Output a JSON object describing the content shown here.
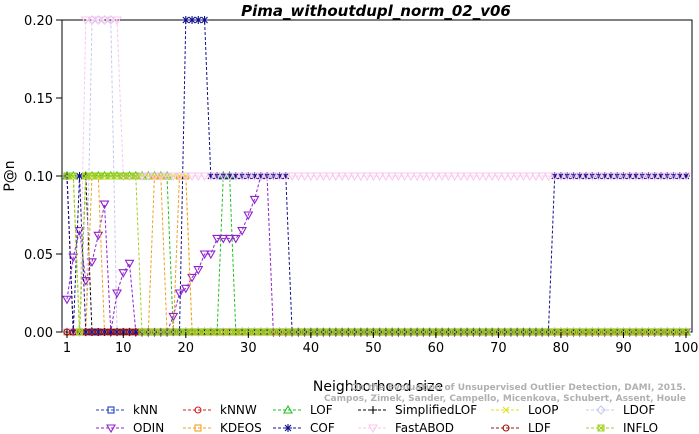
{
  "chart_data": {
    "type": "line",
    "title": "Pima_withoutdupl_norm_02_v06",
    "xlabel": "Neighborhood size",
    "ylabel": "P@n",
    "xlim": [
      1,
      100
    ],
    "ylim": [
      0,
      0.2
    ],
    "xticks": [
      1,
      10,
      20,
      30,
      40,
      50,
      60,
      70,
      80,
      90,
      100
    ],
    "yticks": [
      "0.00",
      "0.05",
      "0.10",
      "0.15",
      "0.20"
    ],
    "grid": false,
    "legend_position": "bottom",
    "series": [
      {
        "name": "kNN",
        "color": "#1f3fbf",
        "marker": "square",
        "points": [
          [
            1,
            0.1
          ],
          [
            2,
            0
          ],
          [
            100,
            0
          ]
        ]
      },
      {
        "name": "kNNW",
        "color": "#d02020",
        "marker": "circle",
        "points": [
          [
            1,
            0.1
          ],
          [
            2,
            0
          ],
          [
            100,
            0
          ]
        ]
      },
      {
        "name": "LOF",
        "color": "#20c020",
        "marker": "triangle",
        "points": [
          [
            1,
            0.1
          ],
          [
            2,
            0.1
          ],
          [
            3,
            0
          ],
          [
            4,
            0.1
          ],
          [
            5,
            0.1
          ],
          [
            6,
            0.1
          ],
          [
            7,
            0.1
          ],
          [
            8,
            0.1
          ],
          [
            9,
            0.1
          ],
          [
            10,
            0.1
          ],
          [
            11,
            0.1
          ],
          [
            12,
            0.1
          ],
          [
            13,
            0.1
          ],
          [
            14,
            0.1
          ],
          [
            15,
            0.1
          ],
          [
            16,
            0.1
          ],
          [
            17,
            0.1
          ],
          [
            18,
            0
          ],
          [
            19,
            0
          ],
          [
            20,
            0
          ],
          [
            21,
            0
          ],
          [
            22,
            0
          ],
          [
            23,
            0
          ],
          [
            24,
            0
          ],
          [
            25,
            0
          ],
          [
            26,
            0.1
          ],
          [
            27,
            0.1
          ],
          [
            28,
            0
          ],
          [
            100,
            0
          ]
        ]
      },
      {
        "name": "SimplifiedLOF",
        "color": "#000000",
        "marker": "plus",
        "points": [
          [
            1,
            0
          ],
          [
            3,
            0
          ],
          [
            4,
            0.1
          ],
          [
            5,
            0
          ],
          [
            100,
            0
          ]
        ]
      },
      {
        "name": "LoOP",
        "color": "#e0e020",
        "marker": "x",
        "points": [
          [
            1,
            0.1
          ],
          [
            2,
            0.1
          ],
          [
            3,
            0
          ],
          [
            4,
            0.1
          ],
          [
            5,
            0.1
          ],
          [
            6,
            0.1
          ],
          [
            7,
            0.1
          ],
          [
            8,
            0.1
          ],
          [
            9,
            0.1
          ],
          [
            10,
            0.1
          ],
          [
            11,
            0.1
          ],
          [
            12,
            0.1
          ],
          [
            13,
            0.1
          ],
          [
            14,
            0.1
          ],
          [
            15,
            0.1
          ],
          [
            16,
            0.1
          ],
          [
            17,
            0.1
          ],
          [
            18,
            0.1
          ],
          [
            19,
            0.1
          ],
          [
            20,
            0.1
          ],
          [
            21,
            0
          ],
          [
            100,
            0
          ]
        ]
      },
      {
        "name": "LDOF",
        "color": "#c8c8f0",
        "marker": "diamond",
        "points": [
          [
            1,
            0
          ],
          [
            4,
            0
          ],
          [
            5,
            0.2
          ],
          [
            6,
            0.2
          ],
          [
            7,
            0.2
          ],
          [
            8,
            0.2
          ],
          [
            9,
            0
          ],
          [
            100,
            0
          ]
        ]
      },
      {
        "name": "ODIN",
        "color": "#9020d0",
        "marker": "triangle-down",
        "points": [
          [
            1,
            0.021
          ],
          [
            2,
            0.048
          ],
          [
            3,
            0.065
          ],
          [
            4,
            0.033
          ],
          [
            5,
            0.045
          ],
          [
            6,
            0.062
          ],
          [
            7,
            0.082
          ],
          [
            8,
            0
          ],
          [
            9,
            0.025
          ],
          [
            10,
            0.038
          ],
          [
            11,
            0.044
          ],
          [
            12,
            0
          ],
          [
            13,
            0
          ],
          [
            14,
            0
          ],
          [
            15,
            0
          ],
          [
            16,
            0
          ],
          [
            17,
            0
          ],
          [
            18,
            0.01
          ],
          [
            19,
            0.025
          ],
          [
            20,
            0.028
          ],
          [
            21,
            0.035
          ],
          [
            22,
            0.04
          ],
          [
            23,
            0.05
          ],
          [
            24,
            0.05
          ],
          [
            25,
            0.06
          ],
          [
            26,
            0.06
          ],
          [
            27,
            0.06
          ],
          [
            28,
            0.06
          ],
          [
            29,
            0.065
          ],
          [
            30,
            0.075
          ],
          [
            31,
            0.085
          ],
          [
            32,
            0.1
          ],
          [
            33,
            0.1
          ],
          [
            34,
            0
          ],
          [
            100,
            0
          ]
        ]
      },
      {
        "name": "KDEOS",
        "color": "#f0a020",
        "marker": "square",
        "points": [
          [
            1,
            0
          ],
          [
            4,
            0
          ],
          [
            5,
            0.1
          ],
          [
            6,
            0.1
          ],
          [
            7,
            0
          ],
          [
            8,
            0
          ],
          [
            14,
            0
          ],
          [
            15,
            0.1
          ],
          [
            16,
            0.1
          ],
          [
            17,
            0
          ],
          [
            18,
            0
          ],
          [
            19,
            0.1
          ],
          [
            20,
            0.1
          ],
          [
            21,
            0
          ],
          [
            100,
            0
          ]
        ]
      },
      {
        "name": "COF",
        "color": "#10108a",
        "marker": "star",
        "points": [
          [
            1,
            0.1
          ],
          [
            2,
            0
          ],
          [
            3,
            0.1
          ],
          [
            4,
            0
          ],
          [
            19,
            0
          ],
          [
            20,
            0.2
          ],
          [
            21,
            0.2
          ],
          [
            22,
            0.2
          ],
          [
            23,
            0.2
          ],
          [
            24,
            0.1
          ],
          [
            25,
            0.1
          ],
          [
            26,
            0.1
          ],
          [
            27,
            0.1
          ],
          [
            28,
            0.1
          ],
          [
            29,
            0.1
          ],
          [
            30,
            0.1
          ],
          [
            31,
            0.1
          ],
          [
            32,
            0.1
          ],
          [
            33,
            0.1
          ],
          [
            34,
            0.1
          ],
          [
            35,
            0.1
          ],
          [
            36,
            0.1
          ],
          [
            37,
            0
          ],
          [
            78,
            0
          ],
          [
            79,
            0.1
          ],
          [
            80,
            0.1
          ],
          [
            81,
            0.1
          ],
          [
            82,
            0.1
          ],
          [
            83,
            0.1
          ],
          [
            84,
            0.1
          ],
          [
            85,
            0.1
          ],
          [
            86,
            0.1
          ],
          [
            87,
            0.1
          ],
          [
            88,
            0.1
          ],
          [
            89,
            0.1
          ],
          [
            90,
            0.1
          ],
          [
            91,
            0.1
          ],
          [
            92,
            0.1
          ],
          [
            93,
            0.1
          ],
          [
            94,
            0.1
          ],
          [
            95,
            0.1
          ],
          [
            96,
            0.1
          ],
          [
            97,
            0.1
          ],
          [
            98,
            0.1
          ],
          [
            99,
            0.1
          ],
          [
            100,
            0.1
          ]
        ]
      },
      {
        "name": "FastABOD",
        "color": "#f8c8f0",
        "marker": "triangle-down",
        "points": [
          [
            1,
            0
          ],
          [
            3,
            0
          ],
          [
            4,
            0.2
          ],
          [
            5,
            0.2
          ],
          [
            6,
            0.2
          ],
          [
            7,
            0.2
          ],
          [
            8,
            0.2
          ],
          [
            9,
            0.2
          ],
          [
            10,
            0.1
          ],
          [
            11,
            0.1
          ],
          [
            12,
            0.1
          ],
          [
            13,
            0.1
          ],
          [
            14,
            0.1
          ],
          [
            15,
            0.1
          ],
          [
            16,
            0.1
          ],
          [
            17,
            0.1
          ],
          [
            18,
            0.1
          ],
          [
            19,
            0.1
          ],
          [
            20,
            0.1
          ],
          [
            21,
            0.1
          ],
          [
            22,
            0.1
          ],
          [
            23,
            0.1
          ],
          [
            24,
            0.1
          ],
          [
            25,
            0.1
          ],
          [
            26,
            0.1
          ],
          [
            27,
            0.1
          ],
          [
            28,
            0.1
          ],
          [
            29,
            0.1
          ],
          [
            30,
            0.1
          ],
          [
            31,
            0.1
          ],
          [
            32,
            0.1
          ],
          [
            33,
            0.1
          ],
          [
            34,
            0.1
          ],
          [
            35,
            0.1
          ],
          [
            36,
            0.1
          ],
          [
            37,
            0.1
          ],
          [
            38,
            0.1
          ],
          [
            39,
            0.1
          ],
          [
            40,
            0.1
          ],
          [
            41,
            0.1
          ],
          [
            42,
            0.1
          ],
          [
            43,
            0.1
          ],
          [
            44,
            0.1
          ],
          [
            45,
            0.1
          ],
          [
            46,
            0.1
          ],
          [
            47,
            0.1
          ],
          [
            48,
            0.1
          ],
          [
            49,
            0.1
          ],
          [
            50,
            0.1
          ],
          [
            51,
            0.1
          ],
          [
            52,
            0.1
          ],
          [
            53,
            0.1
          ],
          [
            54,
            0.1
          ],
          [
            55,
            0.1
          ],
          [
            56,
            0.1
          ],
          [
            57,
            0.1
          ],
          [
            58,
            0.1
          ],
          [
            59,
            0.1
          ],
          [
            60,
            0.1
          ],
          [
            61,
            0.1
          ],
          [
            62,
            0.1
          ],
          [
            63,
            0.1
          ],
          [
            64,
            0.1
          ],
          [
            65,
            0.1
          ],
          [
            66,
            0.1
          ],
          [
            67,
            0.1
          ],
          [
            68,
            0.1
          ],
          [
            69,
            0.1
          ],
          [
            70,
            0.1
          ],
          [
            71,
            0.1
          ],
          [
            72,
            0.1
          ],
          [
            73,
            0.1
          ],
          [
            74,
            0.1
          ],
          [
            75,
            0.1
          ],
          [
            76,
            0.1
          ],
          [
            77,
            0.1
          ],
          [
            78,
            0.1
          ],
          [
            79,
            0.1
          ],
          [
            80,
            0.1
          ],
          [
            81,
            0.1
          ],
          [
            82,
            0.1
          ],
          [
            83,
            0.1
          ],
          [
            84,
            0.1
          ],
          [
            85,
            0.1
          ],
          [
            86,
            0.1
          ],
          [
            87,
            0.1
          ],
          [
            88,
            0.1
          ],
          [
            89,
            0.1
          ],
          [
            90,
            0.1
          ],
          [
            91,
            0.1
          ],
          [
            92,
            0.1
          ],
          [
            93,
            0.1
          ],
          [
            94,
            0.1
          ],
          [
            95,
            0.1
          ],
          [
            96,
            0.1
          ],
          [
            97,
            0.1
          ],
          [
            98,
            0.1
          ],
          [
            99,
            0.1
          ],
          [
            100,
            0.1
          ]
        ]
      },
      {
        "name": "LDF",
        "color": "#a01010",
        "marker": "circle",
        "points": [
          [
            1,
            0
          ],
          [
            100,
            0
          ]
        ]
      },
      {
        "name": "INFLO",
        "color": "#a0d020",
        "marker": "square-x",
        "points": [
          [
            1,
            0.1
          ],
          [
            2,
            0.1
          ],
          [
            3,
            0
          ],
          [
            4,
            0.1
          ],
          [
            5,
            0.1
          ],
          [
            6,
            0.1
          ],
          [
            7,
            0.1
          ],
          [
            8,
            0.1
          ],
          [
            9,
            0.1
          ],
          [
            10,
            0.1
          ],
          [
            11,
            0.1
          ],
          [
            12,
            0.1
          ],
          [
            13,
            0
          ],
          [
            100,
            0
          ]
        ]
      }
    ],
    "legend_order": [
      "kNN",
      "kNNW",
      "LOF",
      "SimplifiedLOF",
      "LoOP",
      "LDOF",
      "ODIN",
      "KDEOS",
      "COF",
      "FastABOD",
      "LDF",
      "INFLO"
    ]
  },
  "watermark": [
    "Campos, Zimek, Sander, Campello, Micenkova, Schubert, Assent, Houle",
    "On the Evaluation of Unsupervised Outlier Detection, DAMI, 2015."
  ]
}
